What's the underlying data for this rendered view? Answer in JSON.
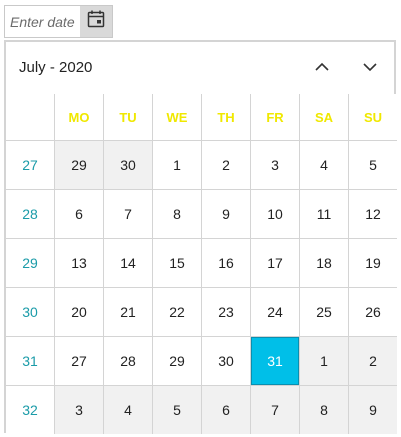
{
  "input": {
    "placeholder": "Enter date",
    "value": ""
  },
  "calendar": {
    "month_label": "July - 2020",
    "weekdays": [
      "MO",
      "TU",
      "WE",
      "TH",
      "FR",
      "SA",
      "SU"
    ],
    "weeks": [
      {
        "number": "27",
        "days": [
          {
            "d": "29",
            "other": true
          },
          {
            "d": "30",
            "other": true
          },
          {
            "d": "1"
          },
          {
            "d": "2"
          },
          {
            "d": "3"
          },
          {
            "d": "4"
          },
          {
            "d": "5"
          }
        ]
      },
      {
        "number": "28",
        "days": [
          {
            "d": "6"
          },
          {
            "d": "7"
          },
          {
            "d": "8"
          },
          {
            "d": "9"
          },
          {
            "d": "10"
          },
          {
            "d": "11"
          },
          {
            "d": "12"
          }
        ]
      },
      {
        "number": "29",
        "days": [
          {
            "d": "13"
          },
          {
            "d": "14"
          },
          {
            "d": "15"
          },
          {
            "d": "16"
          },
          {
            "d": "17"
          },
          {
            "d": "18"
          },
          {
            "d": "19"
          }
        ]
      },
      {
        "number": "30",
        "days": [
          {
            "d": "20"
          },
          {
            "d": "21"
          },
          {
            "d": "22"
          },
          {
            "d": "23"
          },
          {
            "d": "24"
          },
          {
            "d": "25"
          },
          {
            "d": "26"
          }
        ]
      },
      {
        "number": "31",
        "days": [
          {
            "d": "27"
          },
          {
            "d": "28"
          },
          {
            "d": "29"
          },
          {
            "d": "30"
          },
          {
            "d": "31",
            "selected": true
          },
          {
            "d": "1",
            "other": true
          },
          {
            "d": "2",
            "other": true
          }
        ]
      },
      {
        "number": "32",
        "days": [
          {
            "d": "3",
            "other": true
          },
          {
            "d": "4",
            "other": true
          },
          {
            "d": "5",
            "other": true
          },
          {
            "d": "6",
            "other": true
          },
          {
            "d": "7",
            "other": true
          },
          {
            "d": "8",
            "other": true
          },
          {
            "d": "9",
            "other": true
          }
        ]
      }
    ]
  },
  "icons": {
    "calendar_button": "calendar-icon",
    "prev": "chevron-up-icon",
    "next": "chevron-down-icon"
  },
  "colors": {
    "weekday_header": "#f0e800",
    "week_number": "#1a9ba8",
    "selected_day": "#00bfe8",
    "other_month_bg": "#f1f1f1"
  }
}
